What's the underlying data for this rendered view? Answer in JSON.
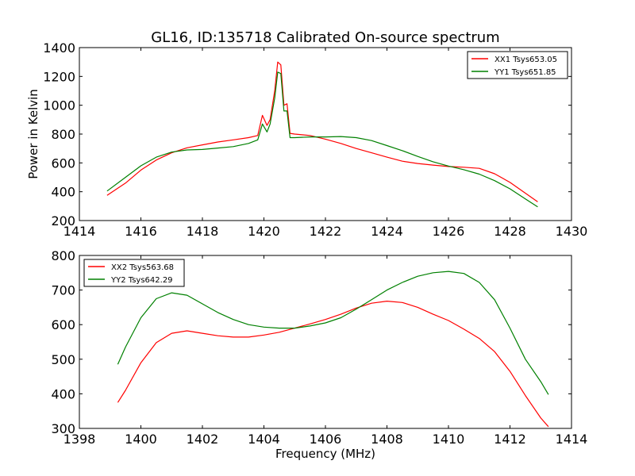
{
  "title": "GL16, ID:135718 Calibrated On-source spectrum",
  "chart_data": [
    {
      "type": "line",
      "title": "GL16, ID:135718 Calibrated On-source spectrum",
      "xlabel": "",
      "ylabel": "Power in Kelvin",
      "xlim": [
        1414,
        1430
      ],
      "ylim": [
        200,
        1400
      ],
      "xticks": [
        1414,
        1416,
        1418,
        1420,
        1422,
        1424,
        1426,
        1428,
        1430
      ],
      "yticks": [
        200,
        400,
        600,
        800,
        1000,
        1200,
        1400
      ],
      "legend_position": "top-right",
      "grid": false,
      "series": [
        {
          "name": "XX1 Tsys653.05",
          "color": "#ff0000",
          "x": [
            1414.9,
            1415.5,
            1416,
            1416.5,
            1417,
            1417.5,
            1418,
            1418.5,
            1419,
            1419.5,
            1419.8,
            1419.95,
            1420.1,
            1420.2,
            1420.35,
            1420.45,
            1420.55,
            1420.65,
            1420.75,
            1420.85,
            1421,
            1421.5,
            1422,
            1422.5,
            1423,
            1423.5,
            1424,
            1424.5,
            1425,
            1425.5,
            1426,
            1426.5,
            1427,
            1427.5,
            1428,
            1428.5,
            1428.9
          ],
          "y": [
            375,
            460,
            550,
            620,
            670,
            705,
            725,
            745,
            760,
            775,
            790,
            930,
            860,
            900,
            1100,
            1300,
            1280,
            1000,
            1010,
            805,
            800,
            790,
            765,
            735,
            700,
            670,
            640,
            612,
            596,
            585,
            575,
            570,
            562,
            525,
            465,
            390,
            330
          ]
        },
        {
          "name": "YY1 Tsys651.85",
          "color": "#008000",
          "x": [
            1414.9,
            1415.5,
            1416,
            1416.5,
            1417,
            1417.5,
            1418,
            1418.5,
            1419,
            1419.5,
            1419.8,
            1419.95,
            1420.1,
            1420.2,
            1420.35,
            1420.45,
            1420.55,
            1420.65,
            1420.75,
            1420.85,
            1421,
            1421.5,
            1422,
            1422.5,
            1423,
            1423.5,
            1424,
            1424.5,
            1425,
            1425.5,
            1426,
            1426.5,
            1427,
            1427.5,
            1428,
            1428.5,
            1428.9
          ],
          "y": [
            405,
            500,
            580,
            640,
            675,
            690,
            693,
            703,
            713,
            735,
            760,
            870,
            815,
            870,
            1050,
            1230,
            1220,
            960,
            960,
            775,
            775,
            780,
            780,
            783,
            775,
            755,
            720,
            685,
            645,
            608,
            578,
            553,
            522,
            477,
            420,
            350,
            295
          ]
        }
      ]
    },
    {
      "type": "line",
      "title": "",
      "xlabel": "Frequency (MHz)",
      "ylabel": "",
      "xlim": [
        1398,
        1414
      ],
      "ylim": [
        300,
        800
      ],
      "xticks": [
        1398,
        1400,
        1402,
        1404,
        1406,
        1408,
        1410,
        1412,
        1414
      ],
      "yticks": [
        300,
        400,
        500,
        600,
        700,
        800
      ],
      "legend_position": "top-left",
      "grid": false,
      "series": [
        {
          "name": "XX2 Tsys563.68",
          "color": "#ff0000",
          "x": [
            1399.25,
            1399.5,
            1400,
            1400.5,
            1401,
            1401.5,
            1402,
            1402.5,
            1403,
            1403.5,
            1404,
            1404.5,
            1405,
            1405.5,
            1406,
            1406.5,
            1407,
            1407.5,
            1408,
            1408.5,
            1409,
            1409.5,
            1410,
            1410.5,
            1411,
            1411.5,
            1412,
            1412.5,
            1413,
            1413.25
          ],
          "y": [
            375,
            410,
            490,
            548,
            575,
            582,
            575,
            568,
            564,
            564,
            570,
            578,
            590,
            602,
            615,
            630,
            648,
            662,
            668,
            664,
            650,
            630,
            612,
            587,
            560,
            522,
            465,
            395,
            330,
            305
          ]
        },
        {
          "name": "YY2 Tsys642.29",
          "color": "#008000",
          "x": [
            1399.25,
            1399.5,
            1400,
            1400.5,
            1401,
            1401.5,
            1402,
            1402.5,
            1403,
            1403.5,
            1404,
            1404.5,
            1405,
            1405.5,
            1406,
            1406.5,
            1407,
            1407.5,
            1408,
            1408.5,
            1409,
            1409.5,
            1410,
            1410.5,
            1411,
            1411.5,
            1412,
            1412.5,
            1413,
            1413.25
          ],
          "y": [
            485,
            535,
            620,
            675,
            692,
            685,
            660,
            635,
            615,
            600,
            593,
            590,
            590,
            596,
            605,
            620,
            645,
            672,
            700,
            722,
            740,
            750,
            754,
            748,
            722,
            672,
            590,
            500,
            435,
            398
          ]
        }
      ]
    }
  ]
}
